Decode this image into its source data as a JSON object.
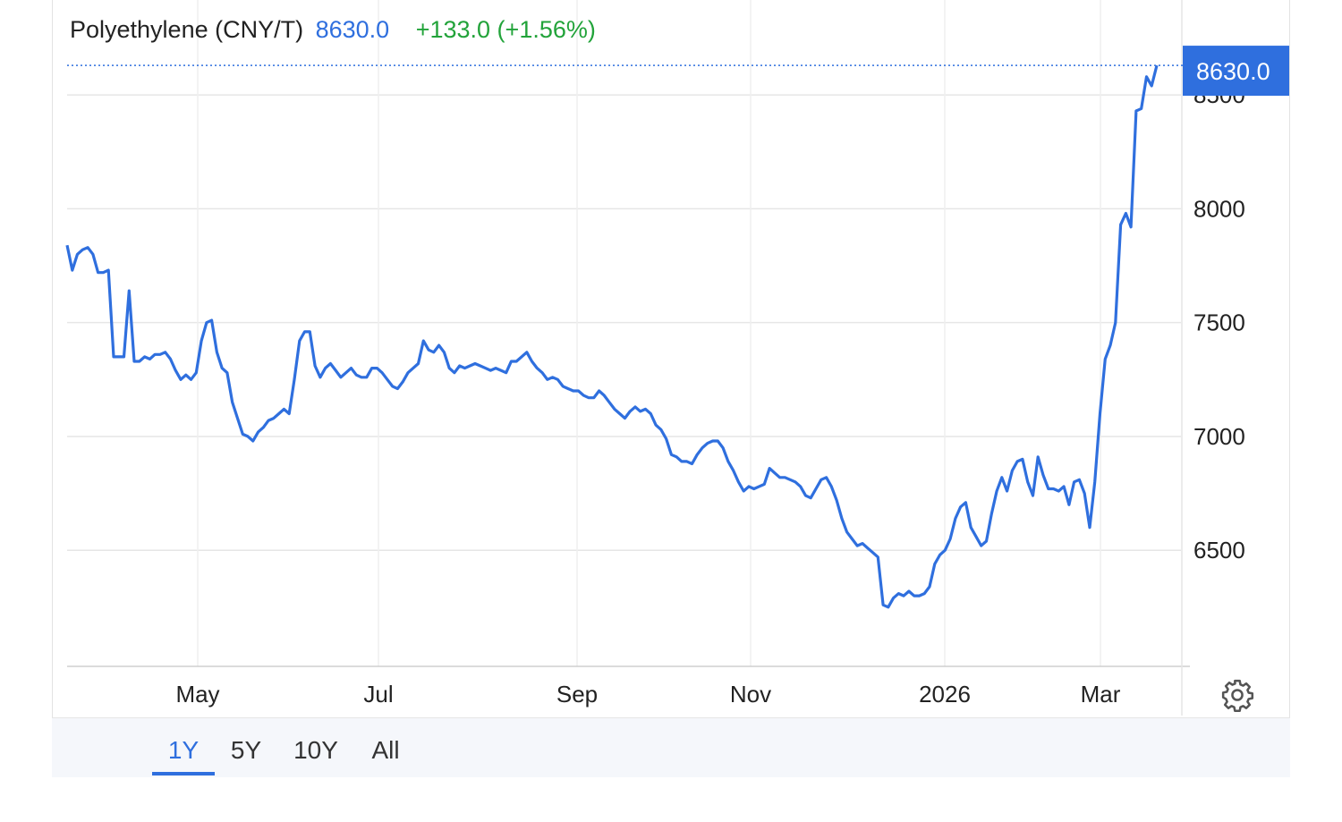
{
  "header": {
    "instrument": "Polyethylene (CNY/T)",
    "price": "8630.0",
    "change": "+133.0 (+1.56%)"
  },
  "last_price_tag": "8630.0",
  "range_buttons": [
    {
      "label": "1Y",
      "active": true
    },
    {
      "label": "5Y",
      "active": false
    },
    {
      "label": "10Y",
      "active": false
    },
    {
      "label": "All",
      "active": false
    }
  ],
  "settings_icon": "gear-icon",
  "colors": {
    "line": "#2f6fde",
    "up": "#22a33a",
    "grid": "#e6e6e6"
  },
  "chart_data": {
    "type": "line",
    "title": "Polyethylene (CNY/T)",
    "xlabel": "",
    "ylabel": "",
    "y_ticks": [
      "6500",
      "7000",
      "7500",
      "8000",
      "8500"
    ],
    "x_ticks": [
      "May",
      "Jul",
      "Sep",
      "Nov",
      "2026",
      "Mar"
    ],
    "ylim": [
      5990,
      8760
    ],
    "grid": true,
    "series": [
      {
        "values": [
          7840,
          7730,
          7800,
          7820,
          7830,
          7800,
          7720,
          7720,
          7730,
          7350,
          7350,
          7350,
          7640,
          7330,
          7330,
          7350,
          7340,
          7360,
          7360,
          7370,
          7340,
          7290,
          7250,
          7270,
          7250,
          7280,
          7420,
          7500,
          7510,
          7370,
          7300,
          7280,
          7150,
          7080,
          7010,
          7000,
          6980,
          7020,
          7040,
          7070,
          7080,
          7100,
          7120,
          7100,
          7250,
          7420,
          7460,
          7460,
          7310,
          7260,
          7300,
          7320,
          7290,
          7260,
          7280,
          7300,
          7270,
          7260,
          7260,
          7300,
          7300,
          7280,
          7250,
          7220,
          7210,
          7240,
          7280,
          7300,
          7320,
          7420,
          7380,
          7370,
          7400,
          7370,
          7300,
          7280,
          7310,
          7300,
          7310,
          7320,
          7310,
          7300,
          7290,
          7300,
          7290,
          7280,
          7330,
          7330,
          7350,
          7370,
          7330,
          7300,
          7280,
          7250,
          7260,
          7250,
          7220,
          7210,
          7200,
          7200,
          7180,
          7170,
          7170,
          7200,
          7180,
          7150,
          7120,
          7100,
          7080,
          7110,
          7130,
          7110,
          7120,
          7100,
          7050,
          7030,
          6990,
          6920,
          6910,
          6890,
          6890,
          6880,
          6920,
          6950,
          6970,
          6980,
          6980,
          6950,
          6890,
          6850,
          6800,
          6760,
          6780,
          6770,
          6780,
          6790,
          6860,
          6840,
          6820,
          6820,
          6810,
          6800,
          6780,
          6740,
          6730,
          6770,
          6810,
          6820,
          6780,
          6720,
          6640,
          6580,
          6550,
          6520,
          6530,
          6510,
          6490,
          6470,
          6260,
          6250,
          6290,
          6310,
          6300,
          6320,
          6300,
          6300,
          6310,
          6340,
          6440,
          6480,
          6500,
          6550,
          6640,
          6690,
          6710,
          6600,
          6560,
          6520,
          6540,
          6660,
          6760,
          6820,
          6760,
          6850,
          6890,
          6900,
          6800,
          6740,
          6910,
          6830,
          6770,
          6770,
          6760,
          6780,
          6700,
          6800,
          6810,
          6750,
          6600,
          6800,
          7100,
          7340,
          7400,
          7500,
          7930,
          7980,
          7920,
          8430,
          8440,
          8580,
          8540,
          8630
        ],
        "note": "weekly-ish samples from mid-Mar 2025 to mid-Mar 2026"
      }
    ]
  }
}
